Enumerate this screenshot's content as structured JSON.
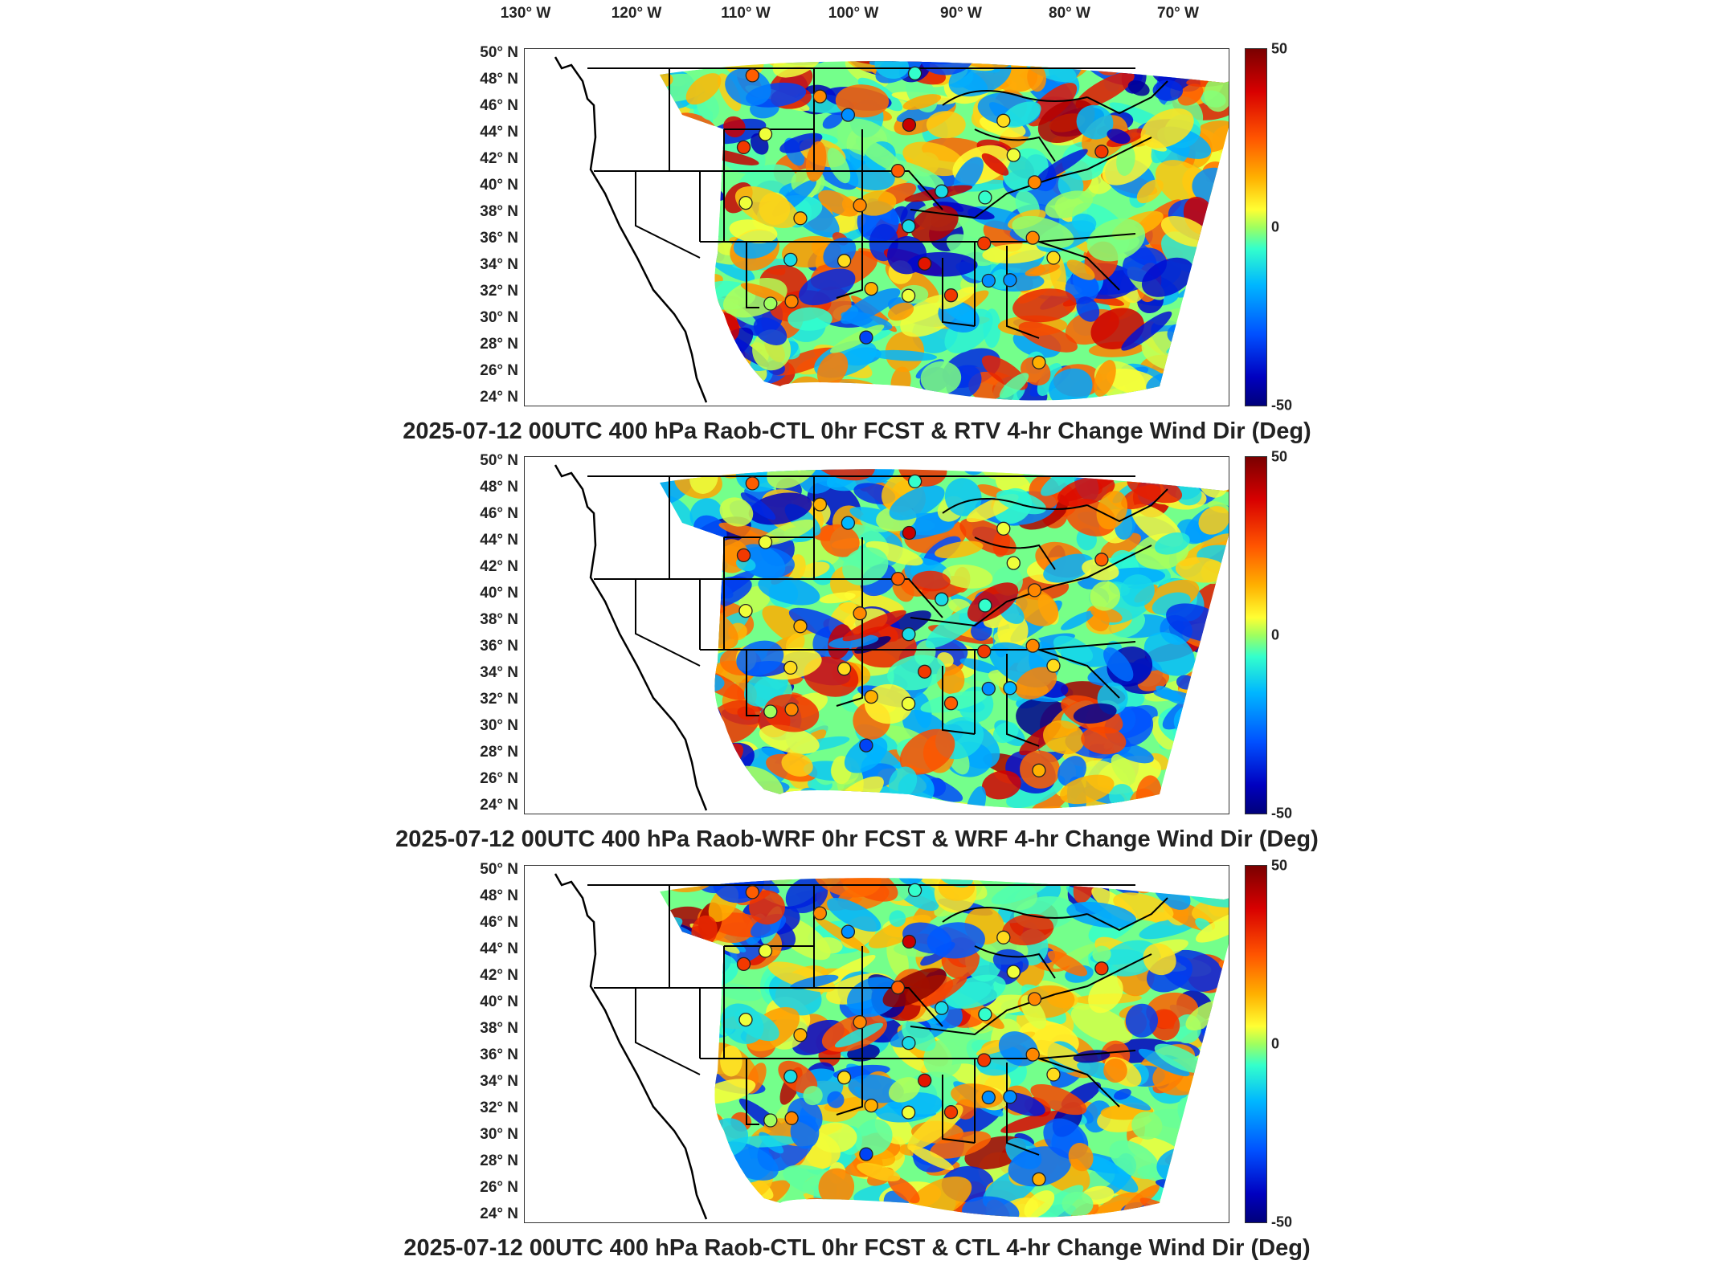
{
  "chart_data": [
    {
      "type": "heatmap",
      "title": "2025-07-12 00UTC 400 hPa Raob-CTL 0hr FCST & RTV 4-hr Change Wind Dir (Deg)",
      "x_ticks": [
        "130° W",
        "120° W",
        "110° W",
        "100° W",
        "90° W",
        "80° W",
        "70° W"
      ],
      "y_ticks": [
        "50° N",
        "48° N",
        "46° N",
        "44° N",
        "42° N",
        "40° N",
        "38° N",
        "36° N",
        "34° N",
        "32° N",
        "30° N",
        "28° N",
        "26° N",
        "24° N"
      ],
      "xlim": [
        -131,
        -64
      ],
      "ylim": [
        24,
        50
      ],
      "colorbar": {
        "min": -50,
        "max": 50,
        "ticks": [
          "50",
          "0",
          "-50"
        ]
      },
      "raob_markers": [
        {
          "lon": -107.5,
          "lat": 48.2,
          "value": 25
        },
        {
          "lon": -101.5,
          "lat": 46.8,
          "value": 20
        },
        {
          "lon": -99,
          "lat": 45.5,
          "value": -20
        },
        {
          "lon": -93.5,
          "lat": 44.8,
          "value": 40
        },
        {
          "lon": -106.5,
          "lat": 44,
          "value": 5
        },
        {
          "lon": -108.5,
          "lat": 43,
          "value": 30
        },
        {
          "lon": -85,
          "lat": 45,
          "value": 10
        },
        {
          "lon": -84,
          "lat": 42.5,
          "value": 5
        },
        {
          "lon": -76,
          "lat": 42.5,
          "value": 30
        },
        {
          "lon": -94.5,
          "lat": 41.5,
          "value": 25
        },
        {
          "lon": -90.5,
          "lat": 40,
          "value": -10
        },
        {
          "lon": -86.5,
          "lat": 39.5,
          "value": -5
        },
        {
          "lon": -82,
          "lat": 40.5,
          "value": 20
        },
        {
          "lon": -108.5,
          "lat": 39,
          "value": 5
        },
        {
          "lon": -103.5,
          "lat": 38,
          "value": 15
        },
        {
          "lon": -98,
          "lat": 39,
          "value": 20
        },
        {
          "lon": -93.5,
          "lat": 37.5,
          "value": -10
        },
        {
          "lon": -86.5,
          "lat": 36.2,
          "value": 30
        },
        {
          "lon": -82,
          "lat": 36.5,
          "value": 20
        },
        {
          "lon": -104.5,
          "lat": 35,
          "value": -10
        },
        {
          "lon": -99.5,
          "lat": 35,
          "value": 10
        },
        {
          "lon": -92,
          "lat": 34.8,
          "value": 35
        },
        {
          "lon": -86,
          "lat": 33.5,
          "value": -20
        },
        {
          "lon": -84,
          "lat": 33.5,
          "value": -20
        },
        {
          "lon": -89.5,
          "lat": 32.5,
          "value": 30
        },
        {
          "lon": -97,
          "lat": 33,
          "value": 15
        },
        {
          "lon": -104.5,
          "lat": 32,
          "value": 20
        },
        {
          "lon": -106.5,
          "lat": 31.8,
          "value": 0
        },
        {
          "lon": -93.5,
          "lat": 32.5,
          "value": 5
        },
        {
          "lon": -97.5,
          "lat": 29.5,
          "value": -30
        },
        {
          "lon": -81,
          "lat": 27.5,
          "value": 15
        },
        {
          "lon": -80,
          "lat": 35,
          "value": 10
        },
        {
          "lon": -93,
          "lat": 48.5,
          "value": -5
        }
      ]
    },
    {
      "type": "heatmap",
      "title": "2025-07-12 00UTC 400 hPa Raob-WRF 0hr FCST & WRF 4-hr Change Wind Dir (Deg)",
      "x_ticks": [
        "130° W",
        "120° W",
        "110° W",
        "100° W",
        "90° W",
        "80° W",
        "70° W"
      ],
      "y_ticks": [
        "50° N",
        "48° N",
        "46° N",
        "44° N",
        "42° N",
        "40° N",
        "38° N",
        "36° N",
        "34° N",
        "32° N",
        "30° N",
        "28° N",
        "26° N",
        "24° N"
      ],
      "xlim": [
        -131,
        -64
      ],
      "ylim": [
        24,
        50
      ],
      "colorbar": {
        "min": -50,
        "max": 50,
        "ticks": [
          "50",
          "0",
          "-50"
        ]
      },
      "raob_markers": [
        {
          "lon": -107.5,
          "lat": 48.2,
          "value": 25
        },
        {
          "lon": -101.5,
          "lat": 46.8,
          "value": 15
        },
        {
          "lon": -99,
          "lat": 45.5,
          "value": -15
        },
        {
          "lon": -93.5,
          "lat": 44.8,
          "value": 40
        },
        {
          "lon": -106.5,
          "lat": 44,
          "value": 5
        },
        {
          "lon": -108.5,
          "lat": 43,
          "value": 30
        },
        {
          "lon": -85,
          "lat": 45,
          "value": 5
        },
        {
          "lon": -84,
          "lat": 42.5,
          "value": 5
        },
        {
          "lon": -76,
          "lat": 42.5,
          "value": 25
        },
        {
          "lon": -94.5,
          "lat": 41.5,
          "value": 25
        },
        {
          "lon": -90.5,
          "lat": 40,
          "value": -10
        },
        {
          "lon": -86.5,
          "lat": 39.5,
          "value": -5
        },
        {
          "lon": -82,
          "lat": 40.5,
          "value": 20
        },
        {
          "lon": -108.5,
          "lat": 39,
          "value": 5
        },
        {
          "lon": -103.5,
          "lat": 38,
          "value": 15
        },
        {
          "lon": -98,
          "lat": 39,
          "value": 20
        },
        {
          "lon": -93.5,
          "lat": 37.5,
          "value": -10
        },
        {
          "lon": -86.5,
          "lat": 36.2,
          "value": 30
        },
        {
          "lon": -82,
          "lat": 36.5,
          "value": 20
        },
        {
          "lon": -104.5,
          "lat": 35,
          "value": 10
        },
        {
          "lon": -99.5,
          "lat": 35,
          "value": 10
        },
        {
          "lon": -92,
          "lat": 34.8,
          "value": 30
        },
        {
          "lon": -86,
          "lat": 33.5,
          "value": -20
        },
        {
          "lon": -84,
          "lat": 33.5,
          "value": -15
        },
        {
          "lon": -89.5,
          "lat": 32.5,
          "value": 25
        },
        {
          "lon": -97,
          "lat": 33,
          "value": 15
        },
        {
          "lon": -104.5,
          "lat": 32,
          "value": 20
        },
        {
          "lon": -106.5,
          "lat": 31.8,
          "value": 0
        },
        {
          "lon": -93.5,
          "lat": 32.5,
          "value": 5
        },
        {
          "lon": -97.5,
          "lat": 29.5,
          "value": -30
        },
        {
          "lon": -81,
          "lat": 27.5,
          "value": 15
        },
        {
          "lon": -80,
          "lat": 35,
          "value": 10
        },
        {
          "lon": -93,
          "lat": 48.5,
          "value": -5
        }
      ]
    },
    {
      "type": "heatmap",
      "title": "2025-07-12 00UTC 400 hPa Raob-CTL 0hr FCST & CTL 4-hr Change Wind Dir (Deg)",
      "x_ticks": [
        "130° W",
        "120° W",
        "110° W",
        "100° W",
        "90° W",
        "80° W",
        "70° W"
      ],
      "y_ticks": [
        "50° N",
        "48° N",
        "46° N",
        "44° N",
        "42° N",
        "40° N",
        "38° N",
        "36° N",
        "34° N",
        "32° N",
        "30° N",
        "28° N",
        "26° N",
        "24° N"
      ],
      "xlim": [
        -131,
        -64
      ],
      "ylim": [
        24,
        50
      ],
      "colorbar": {
        "min": -50,
        "max": 50,
        "ticks": [
          "50",
          "0",
          "-50"
        ]
      },
      "raob_markers": [
        {
          "lon": -107.5,
          "lat": 48.2,
          "value": 25
        },
        {
          "lon": -101.5,
          "lat": 46.8,
          "value": 20
        },
        {
          "lon": -99,
          "lat": 45.5,
          "value": -20
        },
        {
          "lon": -93.5,
          "lat": 44.8,
          "value": 40
        },
        {
          "lon": -106.5,
          "lat": 44,
          "value": 5
        },
        {
          "lon": -108.5,
          "lat": 43,
          "value": 30
        },
        {
          "lon": -85,
          "lat": 45,
          "value": 10
        },
        {
          "lon": -84,
          "lat": 42.5,
          "value": 5
        },
        {
          "lon": -76,
          "lat": 42.5,
          "value": 30
        },
        {
          "lon": -94.5,
          "lat": 41.5,
          "value": 25
        },
        {
          "lon": -90.5,
          "lat": 40,
          "value": -10
        },
        {
          "lon": -86.5,
          "lat": 39.5,
          "value": -5
        },
        {
          "lon": -82,
          "lat": 40.5,
          "value": 20
        },
        {
          "lon": -108.5,
          "lat": 39,
          "value": 5
        },
        {
          "lon": -103.5,
          "lat": 38,
          "value": 15
        },
        {
          "lon": -98,
          "lat": 39,
          "value": 20
        },
        {
          "lon": -93.5,
          "lat": 37.5,
          "value": -10
        },
        {
          "lon": -86.5,
          "lat": 36.2,
          "value": 30
        },
        {
          "lon": -82,
          "lat": 36.5,
          "value": 20
        },
        {
          "lon": -104.5,
          "lat": 35,
          "value": -10
        },
        {
          "lon": -99.5,
          "lat": 35,
          "value": 10
        },
        {
          "lon": -92,
          "lat": 34.8,
          "value": 35
        },
        {
          "lon": -86,
          "lat": 33.5,
          "value": -20
        },
        {
          "lon": -84,
          "lat": 33.5,
          "value": -20
        },
        {
          "lon": -89.5,
          "lat": 32.5,
          "value": 30
        },
        {
          "lon": -97,
          "lat": 33,
          "value": 15
        },
        {
          "lon": -104.5,
          "lat": 32,
          "value": 20
        },
        {
          "lon": -106.5,
          "lat": 31.8,
          "value": 0
        },
        {
          "lon": -93.5,
          "lat": 32.5,
          "value": 5
        },
        {
          "lon": -97.5,
          "lat": 29.5,
          "value": -30
        },
        {
          "lon": -81,
          "lat": 27.5,
          "value": 15
        },
        {
          "lon": -80,
          "lat": 35,
          "value": 10
        },
        {
          "lon": -93,
          "lat": 48.5,
          "value": -5
        }
      ]
    }
  ],
  "colors": {
    "map_line": "#000000",
    "colorbar_top": "#7a0000",
    "colorbar_mid": "#9fff5f",
    "colorbar_bottom": "#00007a"
  }
}
